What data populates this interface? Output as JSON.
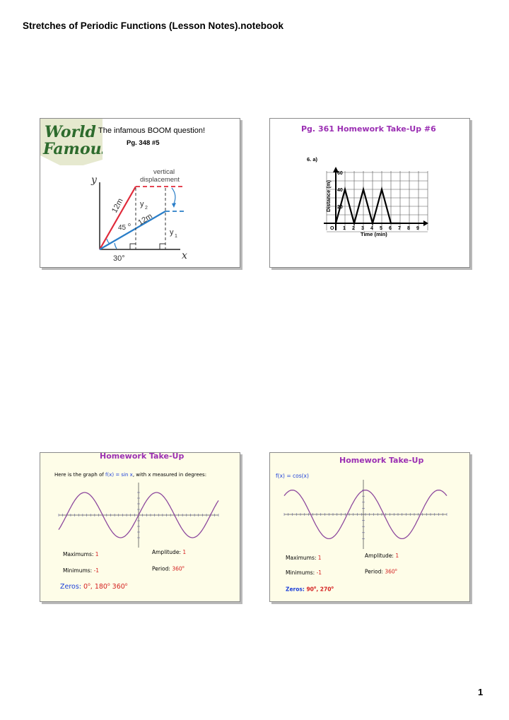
{
  "document": {
    "title": "Stretches of Periodic Functions (Lesson Notes).notebook",
    "page_number": "1"
  },
  "slide1": {
    "logo_line1": "World",
    "logo_line2": "Famous",
    "heading": "The infamous BOOM question!",
    "reference": "Pg. 348 #5",
    "diagram": {
      "y_axis": "y",
      "x_axis": "x",
      "vertical_label_1": "vertical",
      "vertical_label_2": "displacement",
      "label_12m_a": "12m",
      "label_12m_b": "12m",
      "label_y2": "y",
      "label_y2_sub": "2",
      "label_y1": "y",
      "label_y1_sub": "1",
      "angle_45": "45",
      "angle_30": "30°",
      "degree": "o"
    }
  },
  "slide2": {
    "title": "Pg. 361 Homework Take-Up #6",
    "question_label": "6. a)",
    "graph": {
      "ylabel": "Distance (m)",
      "xlabel": "Time (min)",
      "y_ticks": [
        "60",
        "40",
        "20"
      ],
      "x_ticks": [
        "O",
        "1",
        "2",
        "3",
        "4",
        "5",
        "6",
        "7",
        "8",
        "9"
      ]
    }
  },
  "slide3": {
    "title": "Homework Take-Up",
    "intro_pre": "Here is the graph of ",
    "intro_fn": "f(x) = sin x",
    "intro_post": ", with x measured in degrees:",
    "max_label": "Maximums: ",
    "max_value": "1",
    "amp_label": "Amplitude: ",
    "amp_value": "1",
    "min_label": "Minimums: ",
    "min_value": "-1",
    "period_label": "Period: ",
    "period_value": "360",
    "zeros_label": "Zeros: ",
    "zeros_v1": "0",
    "zeros_v2": "180",
    "zeros_v3": "360",
    "degree": "o"
  },
  "slide4": {
    "title": "Homework Take-Up",
    "function": "f(x) = cos(x)",
    "max_label": "Maximums: ",
    "max_value": "1",
    "amp_label": "Amplitude: ",
    "amp_value": "1",
    "min_label": "Minimums: ",
    "min_value": "-1",
    "period_label": "Period: ",
    "period_value": "360",
    "zeros_label": "Zeros: ",
    "zeros_v1": "90",
    "zeros_v2": "270",
    "degree": "o"
  },
  "colors": {
    "slide_title": "#9b2fb3",
    "function_blue": "#1c3fd8",
    "value_red": "#d42020",
    "curve": "#8e4a9e",
    "cream": "#fefde8"
  }
}
